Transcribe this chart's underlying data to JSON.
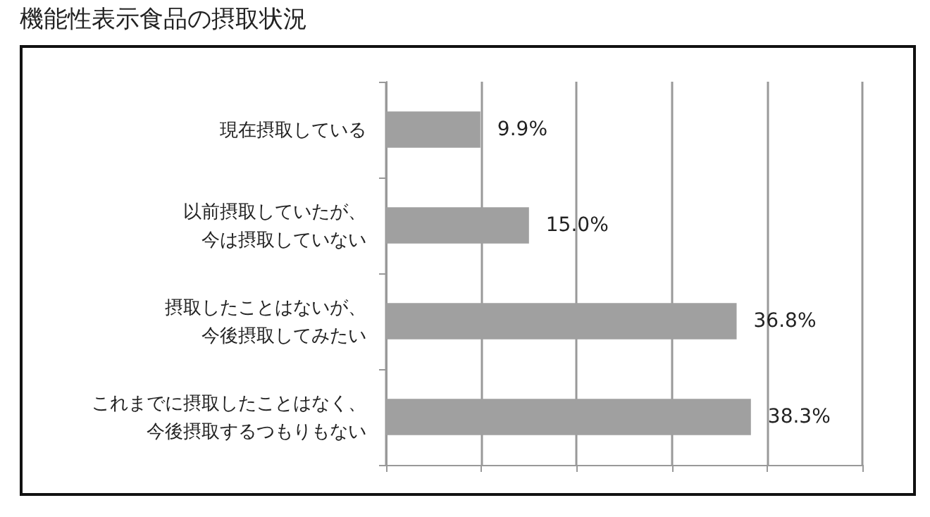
{
  "chart_data": {
    "type": "bar",
    "orientation": "horizontal",
    "title": "機能性表示食品の摂取状況",
    "categories": [
      "現在摂取している",
      "以前摂取していたが、今は摂取していない",
      "摂取したことはないが、今後摂取してみたい",
      "これまでに摂取したことはなく、今後摂取するつもりもない"
    ],
    "values": [
      9.9,
      15.0,
      36.8,
      38.3
    ],
    "value_labels": [
      "9.9%",
      "15.0%",
      "36.8%",
      "38.3%"
    ],
    "color": "#a0a0a0",
    "xlim": [
      0,
      50
    ],
    "xticks": [
      {
        "value": 0,
        "label": null
      },
      {
        "value": 10,
        "label": null
      },
      {
        "value": 20,
        "label": null
      },
      {
        "value": 30,
        "label": null
      },
      {
        "value": 40,
        "label": null
      },
      {
        "value": 50,
        "label": null
      }
    ],
    "grid": "x"
  }
}
